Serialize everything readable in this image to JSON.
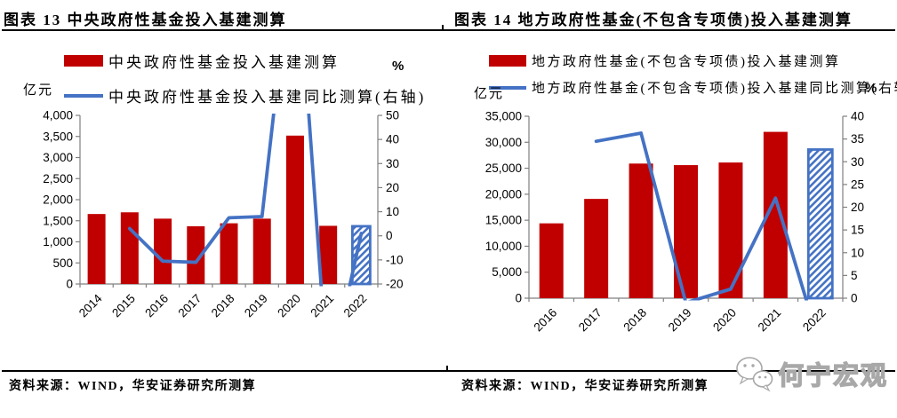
{
  "colors": {
    "bar": "#C00000",
    "line": "#4472C4",
    "axis": "#808080",
    "rule": "#000000",
    "watermark_outline": "#a8a8a8"
  },
  "panels": [
    {
      "title": "图表 13 中央政府性基金投入基建测算",
      "unit_left": "亿元",
      "unit_right": "%",
      "legend": [
        {
          "marker": "bar-swatch",
          "label": "中央政府性基金投入基建测算"
        },
        {
          "marker": "line-swatch",
          "label": "中央政府性基金投入基建同比测算(右轴)"
        }
      ],
      "source": "资料来源：WIND，华安证券研究所测算"
    },
    {
      "title": "图表 14 地方政府性基金(不包含专项债)投入基建测算",
      "unit_left": "亿元",
      "unit_right": "%",
      "legend": [
        {
          "marker": "bar-swatch",
          "label": "地方政府性基金(不包含专项债)投入基建测算"
        },
        {
          "marker": "line-swatch",
          "label": "地方政府性基金(不包含专项债)投入基建同比测算(右轴)"
        }
      ],
      "source": "资料来源：WIND，华安证券研究所测算"
    }
  ],
  "watermark": {
    "icon": "wechat-icon",
    "text": "何宁宏观"
  },
  "chart_data": [
    {
      "type": "bar",
      "title": "图表 13 中央政府性基金投入基建测算",
      "categories": [
        "2014",
        "2015",
        "2016",
        "2017",
        "2018",
        "2019",
        "2020",
        "2021",
        "2022"
      ],
      "series": [
        {
          "name": "中央政府性基金投入基建测算",
          "type": "bar",
          "axis": "left",
          "values": [
            1660,
            1700,
            1550,
            1370,
            1440,
            1550,
            3520,
            1380,
            1370
          ],
          "last_is_forecast": true
        },
        {
          "name": "中央政府性基金投入基建同比测算(右轴)",
          "type": "line",
          "axis": "right",
          "values": [
            null,
            3,
            -10.5,
            -11,
            7.5,
            8,
            129,
            -61,
            1
          ]
        }
      ],
      "left_axis": {
        "title": "亿元",
        "min": 0,
        "max": 4000,
        "step": 500
      },
      "right_axis": {
        "title": "%",
        "min": -20,
        "max": 50,
        "step": 10
      },
      "legend_position": "top",
      "grid": false
    },
    {
      "type": "bar",
      "title": "图表 14 地方政府性基金(不包含专项债)投入基建测算",
      "categories": [
        "2016",
        "2017",
        "2018",
        "2019",
        "2020",
        "2021",
        "2022"
      ],
      "series": [
        {
          "name": "地方政府性基金(不包含专项债)投入基建测算",
          "type": "bar",
          "axis": "left",
          "values": [
            14400,
            19100,
            25900,
            25600,
            26100,
            32000,
            28600
          ],
          "last_is_forecast": true
        },
        {
          "name": "地方政府性基金(不包含专项债)投入基建同比测算(右轴)",
          "type": "line",
          "axis": "right",
          "values": [
            null,
            34.5,
            36.3,
            -1,
            2,
            22,
            -10.6
          ]
        }
      ],
      "left_axis": {
        "title": "亿元",
        "min": 0,
        "max": 35000,
        "step": 5000
      },
      "right_axis": {
        "title": "%",
        "min": 0,
        "max": 40,
        "step": 5
      },
      "legend_position": "top",
      "grid": false
    }
  ]
}
